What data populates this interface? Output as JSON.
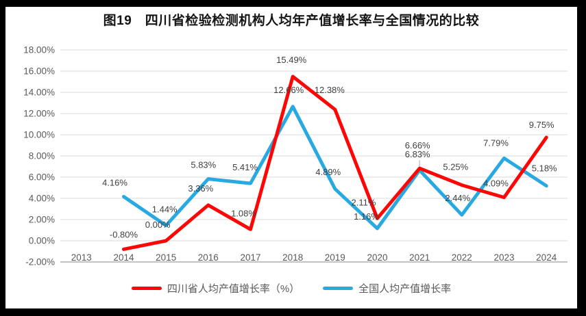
{
  "chart_data": {
    "type": "line",
    "title": "图19　四川省检验检测机构人均年产值增长率与全国情况的比较",
    "categories": [
      "2013",
      "2014",
      "2015",
      "2016",
      "2017",
      "2018",
      "2019",
      "2020",
      "2021",
      "2022",
      "2023",
      "2024"
    ],
    "series": [
      {
        "name": "四川省人均产值增长率（%）",
        "color": "#fe0606",
        "values": [
          null,
          -0.8,
          0.0,
          3.36,
          1.08,
          15.49,
          12.38,
          2.11,
          6.83,
          5.25,
          4.09,
          9.75
        ],
        "labels": [
          "",
          "-0.80%",
          "0.00%",
          "3.36%",
          "1.08%",
          "15.49%",
          "12.38%",
          "2.11%",
          "6.83%",
          "5.25%",
          "4.09%",
          "9.75%"
        ]
      },
      {
        "name": "全国人均产值增长率",
        "color": "#29a9e1",
        "values": [
          null,
          4.16,
          1.44,
          5.83,
          5.41,
          12.66,
          4.89,
          1.16,
          6.66,
          2.44,
          7.79,
          5.18
        ],
        "labels": [
          "",
          "4.16%",
          "1.44%",
          "5.83%",
          "5.41%",
          "12.66%",
          "4.89%",
          "1.16%",
          "6.66%",
          "2.44%",
          "7.79%",
          "5.18%"
        ]
      }
    ],
    "ylim": [
      -2,
      18
    ],
    "ytick_step": 2,
    "ytick_labels": [
      "18.00%",
      "16.00%",
      "14.00%",
      "12.00%",
      "10.00%",
      "8.00%",
      "6.00%",
      "4.00%",
      "2.00%",
      "0.00%",
      "-2.00%"
    ],
    "xlabel": "",
    "ylabel": "",
    "grid": true,
    "legend_position": "bottom",
    "gridline_color": "#d9d9d9",
    "axis_text_color": "#595959",
    "data_label_color": "#3f3f3f",
    "frame_color": "#000000",
    "background_color": "#ffffff"
  }
}
